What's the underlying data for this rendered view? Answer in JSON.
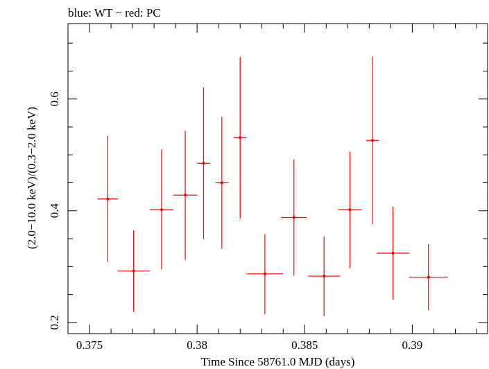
{
  "chart_data": {
    "type": "scatter",
    "title": "blue: WT − red: PC",
    "xlabel": "Time Since 58761.0 MJD (days)",
    "ylabel": "(2.0−10.0 keV)/(0.3−2.0 keV)",
    "xlim": [
      0.374,
      0.3935
    ],
    "ylim": [
      0.18,
      0.735
    ],
    "x_ticks": [
      0.375,
      0.38,
      0.385,
      0.39
    ],
    "x_tick_labels": [
      "0.375",
      "0.38",
      "0.385",
      "0.39"
    ],
    "y_ticks": [
      0.2,
      0.4,
      0.6
    ],
    "y_tick_labels": [
      "0.2",
      "0.4",
      "0.6"
    ],
    "grid": false,
    "series": [
      {
        "color": "#ff0000",
        "points": [
          {
            "x": 0.37585,
            "xerr": 0.00048,
            "y": 0.421,
            "ylo": 0.308,
            "yhi": 0.534
          },
          {
            "x": 0.37705,
            "xerr": 0.00075,
            "y": 0.292,
            "ylo": 0.219,
            "yhi": 0.365
          },
          {
            "x": 0.37835,
            "xerr": 0.00055,
            "y": 0.402,
            "ylo": 0.295,
            "yhi": 0.51
          },
          {
            "x": 0.37945,
            "xerr": 0.00055,
            "y": 0.428,
            "ylo": 0.312,
            "yhi": 0.543
          },
          {
            "x": 0.3803,
            "xerr": 0.0003,
            "y": 0.485,
            "ylo": 0.349,
            "yhi": 0.621
          },
          {
            "x": 0.38115,
            "xerr": 0.0003,
            "y": 0.45,
            "ylo": 0.332,
            "yhi": 0.568
          },
          {
            "x": 0.382,
            "xerr": 0.0003,
            "y": 0.531,
            "ylo": 0.386,
            "yhi": 0.675
          },
          {
            "x": 0.38315,
            "xerr": 0.00085,
            "y": 0.287,
            "ylo": 0.215,
            "yhi": 0.358
          },
          {
            "x": 0.3845,
            "xerr": 0.0006,
            "y": 0.388,
            "ylo": 0.284,
            "yhi": 0.492
          },
          {
            "x": 0.3859,
            "xerr": 0.00075,
            "y": 0.283,
            "ylo": 0.211,
            "yhi": 0.354
          },
          {
            "x": 0.3871,
            "xerr": 0.00055,
            "y": 0.402,
            "ylo": 0.297,
            "yhi": 0.506
          },
          {
            "x": 0.38815,
            "xerr": 0.0003,
            "y": 0.526,
            "ylo": 0.376,
            "yhi": 0.676
          },
          {
            "x": 0.3891,
            "xerr": 0.00075,
            "y": 0.324,
            "ylo": 0.241,
            "yhi": 0.407
          },
          {
            "x": 0.39075,
            "xerr": 0.0009,
            "y": 0.281,
            "ylo": 0.222,
            "yhi": 0.34
          }
        ]
      }
    ]
  }
}
